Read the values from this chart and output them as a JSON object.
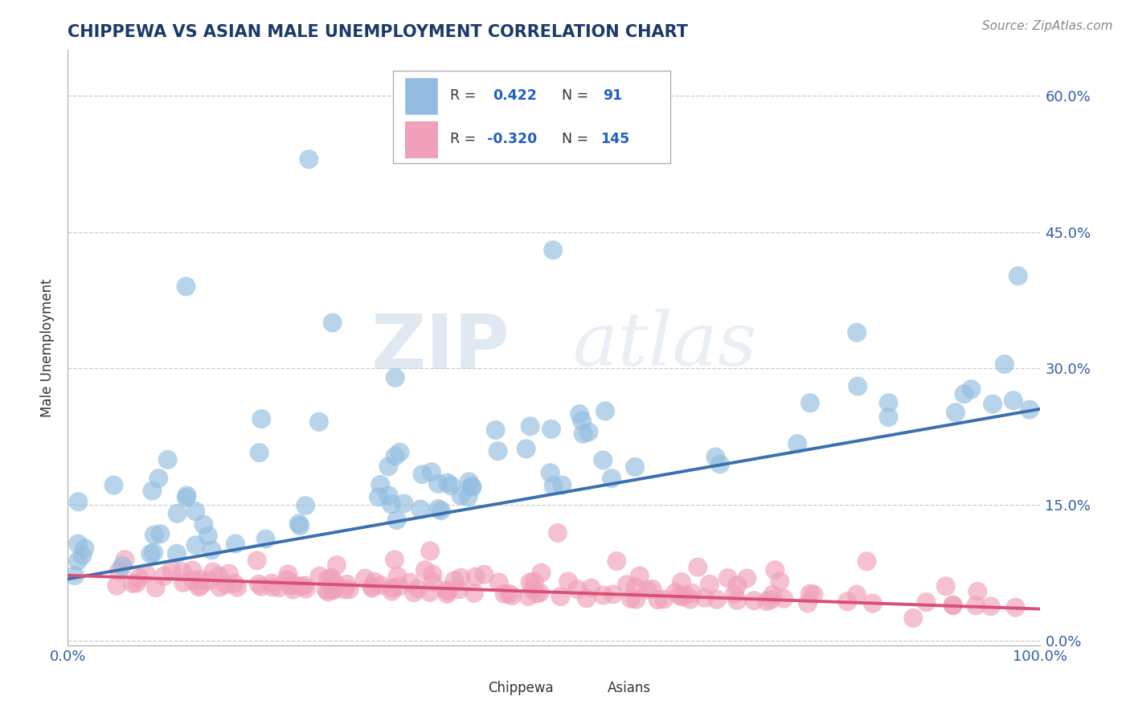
{
  "title": "CHIPPEWA VS ASIAN MALE UNEMPLOYMENT CORRELATION CHART",
  "source_text": "Source: ZipAtlas.com",
  "ylabel": "Male Unemployment",
  "xlim": [
    0.0,
    1.0
  ],
  "ylim": [
    -0.005,
    0.65
  ],
  "ytick_labels": [
    "0.0%",
    "15.0%",
    "30.0%",
    "45.0%",
    "60.0%"
  ],
  "ytick_values": [
    0.0,
    0.15,
    0.3,
    0.45,
    0.6
  ],
  "xtick_labels": [
    "0.0%",
    "100.0%"
  ],
  "xtick_values": [
    0.0,
    1.0
  ],
  "chippewa_color": "#92bde0",
  "asian_color": "#f0a0b8",
  "chippewa_line_color": "#3a70b0",
  "asian_line_color": "#d85075",
  "R_chippewa": 0.422,
  "N_chippewa": 91,
  "R_asian": -0.32,
  "N_asian": 145,
  "watermark_zip": "ZIP",
  "watermark_atlas": "atlas",
  "background_color": "#ffffff",
  "grid_color": "#cccccc",
  "title_color": "#1a3a6a",
  "tick_color": "#3060a0",
  "legend_text_color": "#333333",
  "legend_val_color": "#2060c0",
  "chippewa_trend_start_y": 0.068,
  "chippewa_trend_end_y": 0.255,
  "asian_trend_start_y": 0.072,
  "asian_trend_end_y": 0.035
}
